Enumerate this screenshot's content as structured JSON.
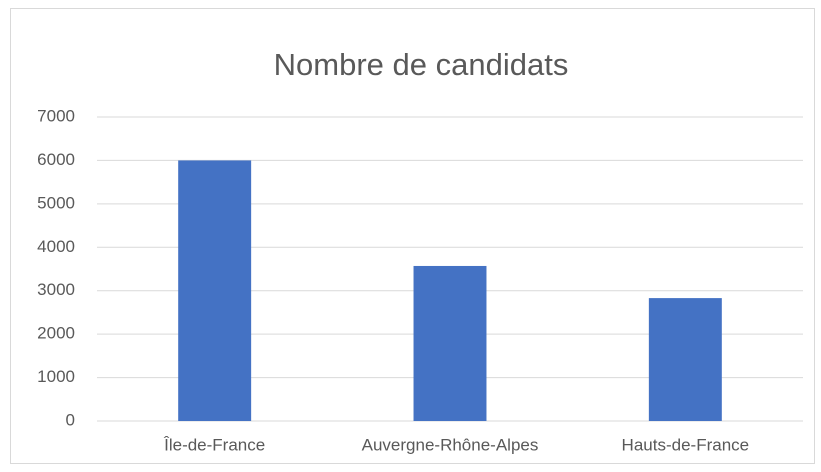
{
  "chart_data": {
    "type": "bar",
    "title": "Nombre de candidats",
    "categories": [
      "Île-de-France",
      "Auvergne-Rhône-Alpes",
      "Hauts-de-France"
    ],
    "values": [
      6000,
      3570,
      2830
    ],
    "color": "#4472c4",
    "ylim": [
      0,
      7000
    ],
    "yticks": [
      0,
      1000,
      2000,
      3000,
      4000,
      5000,
      6000,
      7000
    ],
    "grid": true
  }
}
